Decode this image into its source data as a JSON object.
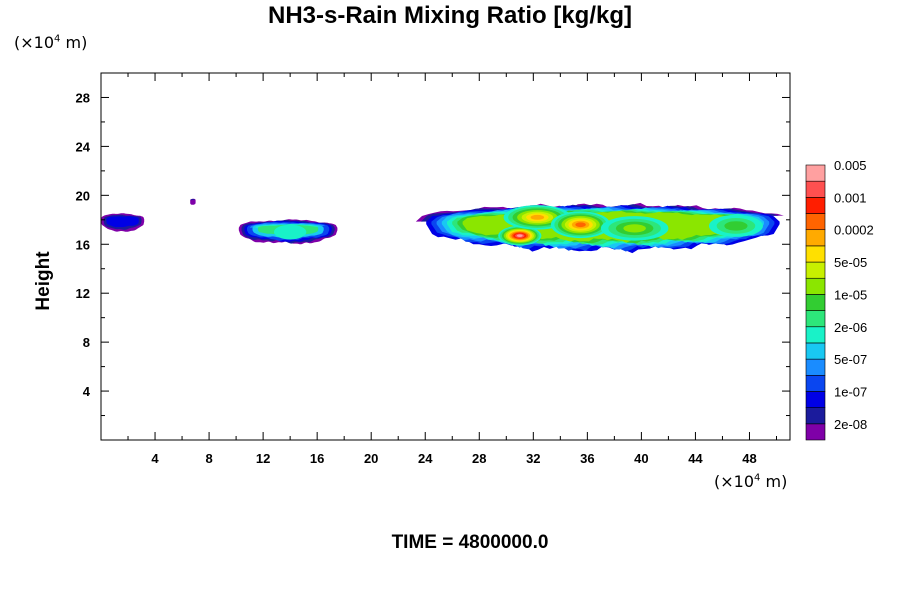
{
  "chart_data": {
    "type": "heatmap",
    "title": "NH3-s-Rain Mixing Ratio [kg/kg]",
    "xlabel": "",
    "ylabel": "Height",
    "x_unit_label": "(×10",
    "x_unit_exp": "4",
    "x_unit_tail": " m)",
    "y_unit_label": "(×10",
    "y_unit_exp": "4",
    "y_unit_tail": " m)",
    "xlim": [
      0,
      51
    ],
    "ylim": [
      0,
      30
    ],
    "x_ticks": [
      4,
      8,
      12,
      16,
      20,
      24,
      28,
      32,
      36,
      40,
      44,
      48
    ],
    "y_ticks": [
      4,
      8,
      12,
      16,
      20,
      24,
      28
    ],
    "time_label": "TIME = 4800000.0",
    "colorbar": {
      "colors": [
        "#7f00a8",
        "#1b1b9c",
        "#0000e6",
        "#0a46f0",
        "#1a8cff",
        "#19c8f2",
        "#19f2c8",
        "#2de67a",
        "#32cd32",
        "#8be600",
        "#c8f000",
        "#ffe000",
        "#ffaa00",
        "#ff6400",
        "#ff1e00",
        "#ff5050",
        "#ffa0a0"
      ],
      "labels": [
        "2e-08",
        "1e-07",
        "5e-07",
        "2e-06",
        "1e-05",
        "5e-05",
        "0.0002",
        "0.001",
        "0.005"
      ]
    },
    "regions": [
      {
        "x0": 0,
        "x1": 3.2,
        "ytop": 18.6,
        "ybot": 17.1,
        "peak": 2
      },
      {
        "x0": 6.6,
        "x1": 7.0,
        "ytop": 19.6,
        "ybot": 19.2,
        "peak": 1
      },
      {
        "x0": 10.2,
        "x1": 17.5,
        "ytop": 18.2,
        "ybot": 16.1,
        "peak": 7
      },
      {
        "x0": 23.3,
        "x1": 51,
        "ytop": 19.9,
        "ybot": 15.4,
        "peak": 16
      }
    ],
    "cores": [
      {
        "x": 31,
        "y": 16.7,
        "rx": 1.6,
        "ry": 0.8,
        "level": 16
      },
      {
        "x": 32.3,
        "y": 18.2,
        "rx": 2.5,
        "ry": 1.0,
        "level": 12
      },
      {
        "x": 35.5,
        "y": 17.6,
        "rx": 2.2,
        "ry": 1.1,
        "level": 13
      },
      {
        "x": 39.5,
        "y": 17.3,
        "rx": 2.5,
        "ry": 1.0,
        "level": 9
      },
      {
        "x": 47,
        "y": 17.5,
        "rx": 2.0,
        "ry": 0.9,
        "level": 8
      },
      {
        "x": 14,
        "y": 17.0,
        "rx": 1.2,
        "ry": 0.6,
        "level": 6
      }
    ]
  }
}
